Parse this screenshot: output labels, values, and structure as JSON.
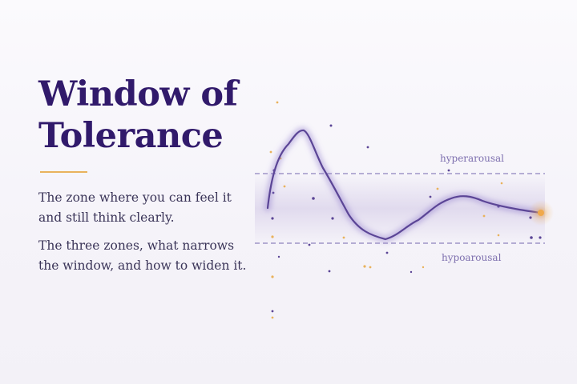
{
  "title": {
    "line1": "Window of",
    "line2": "Tolerance"
  },
  "intro": {
    "line1": "The zone where you can feel it",
    "line2": "and still think clearly."
  },
  "detail": {
    "line1": "The three zones, what narrows",
    "line2": "the window, and how to widen it."
  },
  "diagram": {
    "upper_label": "hyperarousal",
    "lower_label": "hypoarousal"
  },
  "colors": {
    "title": "#311a6b",
    "accent": "#e9b25c",
    "curve": "#5b4596",
    "band": "#ddd6ec"
  }
}
